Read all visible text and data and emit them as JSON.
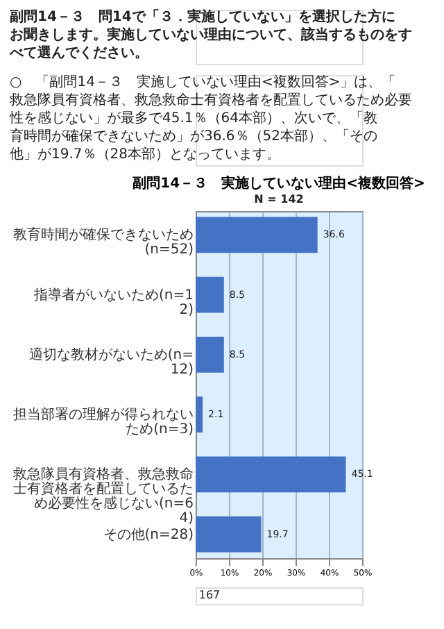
{
  "chart_data": {
    "type": "bar",
    "orientation": "horizontal",
    "title": "副問14－３　実施していない理由<複数回答>",
    "subtitle": "N = 142",
    "annotations": [
      "副問14－３　問14で「３．実施していない」を選択した方にお聞きします。実施していない理由について、該当するものをすべて選んでください。",
      "○　「副問14－３　実施していない理由<複数回答>」は、「救急隊員有資格者、救急救命士有資格者を配置しているため必要性を感じない」が最多で45.1％（64本部）、次いで、「教育時間が確保できないため」が36.6％（52本部）、「その他」が19.7％（28本部）となっています。",
      "167"
    ],
    "categories": [
      "教育時間が確保できないため(n=52)",
      "指導者がいないため(n=12)",
      "適切な教材がないため(n=12)",
      "担当部署の理解が得られないため(n=3)",
      "救急隊員有資格者、救急救命士有資格者を配置しているため必要性を感じない(n=64)",
      "その他(n=28)"
    ],
    "values": [
      36.6,
      8.5,
      8.5,
      2.1,
      45.1,
      19.7
    ],
    "color": "#4472c4",
    "xlim": [
      0,
      50
    ],
    "xticks": [
      {
        "value": 0,
        "label": "0%"
      },
      {
        "value": 10,
        "label": "10%"
      },
      {
        "value": 20,
        "label": "20%"
      },
      {
        "value": 30,
        "label": "30%"
      },
      {
        "value": 40,
        "label": "40%"
      },
      {
        "value": 50,
        "label": "50%"
      }
    ],
    "grid": "x",
    "data_labels": true
  }
}
